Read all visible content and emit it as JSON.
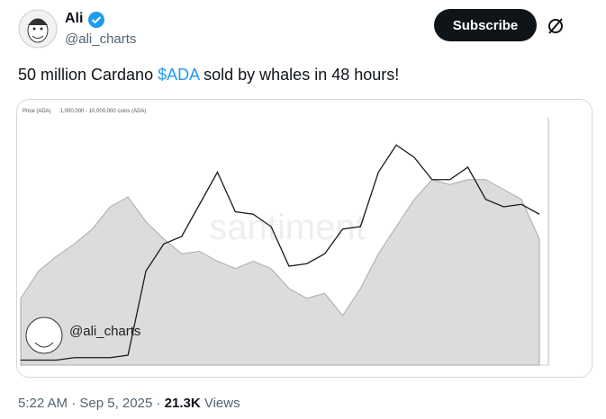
{
  "author": {
    "name": "Ali",
    "handle": "@ali_charts"
  },
  "subscribe": "Subscribe",
  "tweet": {
    "text_before": "50 million Cardano ",
    "cashtag": "$ADA",
    "text_after": " sold by whales in 48 hours!"
  },
  "image": {
    "watermark": "santiment",
    "overlay_handle": "@ali_charts",
    "chart_data": {
      "type": "line",
      "ylim": [
        0,
        100
      ],
      "series": [
        {
          "name": "1,000,000 - 10,000,000 coins (ADA)",
          "color": "#dcdcdc",
          "area": true,
          "values": [
            27,
            38,
            44,
            49,
            55,
            64,
            68,
            58,
            51,
            45,
            46,
            42,
            39,
            42,
            39,
            31,
            27,
            29,
            20,
            31,
            45,
            56,
            67,
            75,
            73,
            75,
            75,
            71,
            67,
            51
          ]
        },
        {
          "name": "Price (ADA)",
          "color": "#1a1a1a",
          "area": false,
          "values": [
            2,
            2,
            2,
            3,
            3,
            3,
            4,
            38,
            49,
            52,
            65,
            78,
            62,
            61,
            56,
            40,
            41,
            45,
            55,
            56,
            78,
            89,
            84,
            75,
            75,
            80,
            67,
            64,
            65,
            61
          ]
        }
      ]
    }
  },
  "footer": {
    "time": "5:22 AM",
    "separator": "·",
    "date": "Sep 5, 2025",
    "views": "21.3K",
    "views_label": "Views"
  }
}
